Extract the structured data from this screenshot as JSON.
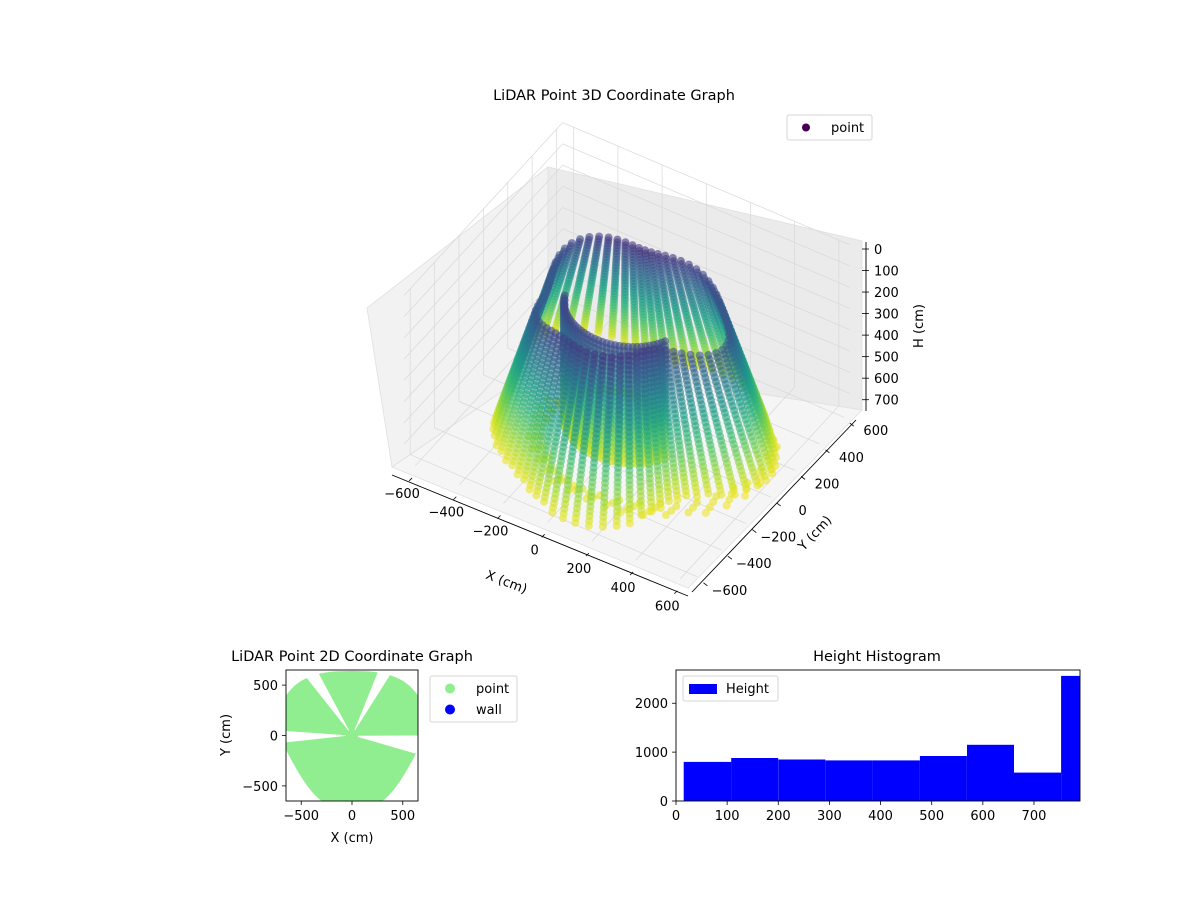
{
  "chart_data": [
    {
      "type": "scatter",
      "projection": "3d",
      "title": "LiDAR Point 3D Coordinate Graph",
      "xlabel": "X (cm)",
      "ylabel": "Y (cm)",
      "zlabel": "H (cm)",
      "xticks": [
        "−600",
        "−400",
        "−200",
        "0",
        "200",
        "400",
        "600"
      ],
      "yticks": [
        "−600",
        "−400",
        "−200",
        "0",
        "200",
        "400",
        "600"
      ],
      "zticks": [
        "0",
        "100",
        "200",
        "300",
        "400",
        "500",
        "600",
        "700"
      ],
      "xlim": [
        -650,
        650
      ],
      "ylim": [
        -650,
        650
      ],
      "zlim": [
        780,
        0
      ],
      "z_inverted": true,
      "colormap": "viridis",
      "legend": {
        "position": "top-right",
        "entries": [
          {
            "label": "point",
            "color": "#440154"
          }
        ]
      },
      "grid": true
    },
    {
      "type": "scatter",
      "title": "LiDAR Point 2D Coordinate Graph",
      "xlabel": "X (cm)",
      "ylabel": "Y (cm)",
      "xticks": [
        "−500",
        "0",
        "500"
      ],
      "yticks": [
        "−500",
        "0",
        "500"
      ],
      "xlim": [
        -650,
        650
      ],
      "ylim": [
        -650,
        650
      ],
      "series": [
        {
          "name": "point",
          "color": "#90ee90"
        },
        {
          "name": "wall",
          "color": "#0000ff"
        }
      ],
      "legend": {
        "position": "outside-right"
      }
    },
    {
      "type": "bar",
      "subtype": "histogram",
      "title": "Height Histogram",
      "xticks": [
        "0",
        "100",
        "200",
        "300",
        "400",
        "500",
        "600",
        "700"
      ],
      "yticks": [
        "0",
        "1000",
        "2000"
      ],
      "xlim": [
        0,
        790
      ],
      "ylim": [
        0,
        2680
      ],
      "bin_edges": [
        15,
        108,
        200,
        292,
        385,
        477,
        569,
        661,
        753,
        790
      ],
      "values": [
        800,
        880,
        850,
        830,
        830,
        920,
        1150,
        580,
        2560
      ],
      "series": [
        {
          "name": "Height",
          "color": "#0000ff"
        }
      ],
      "legend": {
        "position": "top-left"
      }
    }
  ]
}
